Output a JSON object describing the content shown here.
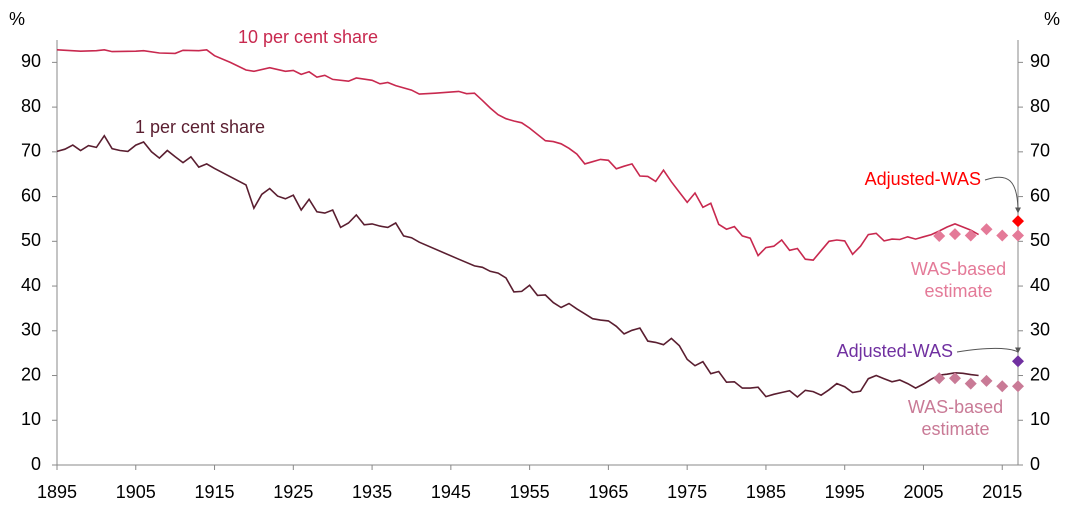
{
  "chart_data": {
    "type": "line",
    "y_label": "%",
    "y2_label": "%",
    "xlim": [
      1895,
      2017
    ],
    "xticks": [
      1895,
      1905,
      1915,
      1925,
      1935,
      1945,
      1955,
      1965,
      1975,
      1985,
      1995,
      2005,
      2015
    ],
    "ylim": [
      0,
      95
    ],
    "yticks": [
      0,
      10,
      20,
      30,
      40,
      50,
      60,
      70,
      80,
      90
    ],
    "y2lim": [
      0,
      95
    ],
    "y2ticks": [
      0,
      10,
      20,
      30,
      40,
      50,
      60,
      70,
      80,
      90
    ],
    "series": [
      {
        "name": "10 per cent share",
        "color": "#c8294f",
        "marker": "line",
        "x": [
          1895,
          1898,
          1900,
          1901,
          1902,
          1905,
          1906,
          1908,
          1910,
          1911,
          1913,
          1914,
          1915,
          1917,
          1919,
          1920,
          1922,
          1924,
          1925,
          1926,
          1927,
          1928,
          1929,
          1930,
          1932,
          1933,
          1935,
          1936,
          1937,
          1938,
          1940,
          1941,
          1943,
          1946,
          1947,
          1948,
          1949,
          1950,
          1951,
          1952,
          1953,
          1954,
          1955,
          1957,
          1958,
          1959,
          1960,
          1961,
          1962,
          1963,
          1964,
          1965,
          1966,
          1967,
          1968,
          1969,
          1970,
          1971,
          1972,
          1973,
          1974,
          1975,
          1976,
          1977,
          1978,
          1979,
          1980,
          1981,
          1982,
          1983,
          1984,
          1985,
          1986,
          1987,
          1988,
          1989,
          1990,
          1991,
          1992,
          1993,
          1994,
          1995,
          1996,
          1997,
          1998,
          1999,
          2000,
          2001,
          2002,
          2003,
          2004,
          2005,
          2006,
          2007,
          2008,
          2009,
          2010,
          2011,
          2012
        ],
        "values": [
          92.8,
          92.5,
          92.6,
          92.8,
          92.4,
          92.5,
          92.6,
          92.1,
          92.0,
          92.7,
          92.6,
          92.8,
          91.5,
          90,
          88.3,
          88,
          88.8,
          88,
          88.2,
          87.3,
          87.9,
          86.7,
          87.1,
          86.2,
          85.8,
          86.5,
          86,
          85.2,
          85.5,
          84.8,
          83.8,
          82.9,
          83.1,
          83.5,
          83.0,
          83.1,
          81.5,
          79.8,
          78.3,
          77.4,
          76.9,
          76.5,
          75.3,
          72.5,
          72.3,
          71.8,
          70.8,
          69.5,
          67.3,
          67.8,
          68.3,
          68.1,
          66.2,
          66.8,
          67.3,
          64.6,
          64.5,
          63.4,
          65.9,
          63.3,
          61,
          58.7,
          60.8,
          57.6,
          58.5,
          53.8,
          52.7,
          53.3,
          51.2,
          50.7,
          46.8,
          48.6,
          48.9,
          50.3,
          48,
          48.4,
          46,
          45.8,
          47.9,
          50,
          50.3,
          50.1,
          47.1,
          48.9,
          51.5,
          51.8,
          50.1,
          50.5,
          50.4,
          51,
          50.5,
          51,
          51.5,
          52.3,
          53.2,
          53.9,
          53.2,
          52.5,
          51.5
        ]
      },
      {
        "name": "1 per cent share",
        "color": "#5a1e30",
        "marker": "line",
        "x": [
          1895,
          1896,
          1897,
          1898,
          1899,
          1900,
          1901,
          1902,
          1903,
          1904,
          1905,
          1906,
          1907,
          1908,
          1909,
          1910,
          1911,
          1912,
          1913,
          1914,
          1915,
          1919,
          1920,
          1921,
          1922,
          1923,
          1924,
          1925,
          1926,
          1927,
          1928,
          1929,
          1930,
          1931,
          1932,
          1933,
          1934,
          1935,
          1936,
          1937,
          1938,
          1939,
          1940,
          1941,
          1946,
          1948,
          1949,
          1950,
          1951,
          1952,
          1953,
          1954,
          1955,
          1956,
          1957,
          1958,
          1959,
          1960,
          1961,
          1962,
          1963,
          1964,
          1965,
          1966,
          1967,
          1968,
          1969,
          1970,
          1971,
          1972,
          1973,
          1974,
          1975,
          1976,
          1977,
          1978,
          1979,
          1980,
          1981,
          1982,
          1983,
          1984,
          1985,
          1986,
          1987,
          1988,
          1989,
          1990,
          1991,
          1992,
          1993,
          1994,
          1995,
          1996,
          1997,
          1998,
          1999,
          2000,
          2001,
          2002,
          2003,
          2004,
          2005,
          2006,
          2007,
          2008,
          2009,
          2010,
          2011,
          2012
        ],
        "values": [
          70.1,
          70.6,
          71.5,
          70.3,
          71.4,
          71,
          73.6,
          70.7,
          70.3,
          70.1,
          71.5,
          72.2,
          70,
          68.6,
          70.3,
          68.9,
          67.6,
          68.9,
          66.6,
          67.3,
          66.3,
          62.6,
          57.4,
          60.5,
          61.8,
          60.1,
          59.5,
          60.3,
          57,
          59.4,
          56.6,
          56.3,
          57,
          53.1,
          54.1,
          55.9,
          53.7,
          53.9,
          53.4,
          53.1,
          54.1,
          51.2,
          50.8,
          49.8,
          46,
          44.5,
          44.2,
          43.3,
          42.9,
          41.8,
          38.7,
          38.8,
          40.2,
          37.9,
          38,
          36.3,
          35.2,
          36.1,
          34.9,
          33.8,
          32.7,
          32.4,
          32.2,
          31,
          29.3,
          30.1,
          30.6,
          27.7,
          27.4,
          26.9,
          28.3,
          26.7,
          23.6,
          22.2,
          23.1,
          20.4,
          20.9,
          18.5,
          18.6,
          17.2,
          17.2,
          17.4,
          15.3,
          15.8,
          16.2,
          16.6,
          15.2,
          16.7,
          16.4,
          15.6,
          16.8,
          18.2,
          17.5,
          16.2,
          16.5,
          19.3,
          20,
          19.3,
          18.6,
          19,
          18.2,
          17.2,
          18.1,
          19.2,
          20.1,
          20.3,
          20.6,
          20.5,
          20.2,
          20
        ]
      },
      {
        "name": "WAS-based estimate",
        "color": "#e47a98",
        "marker": "diamond",
        "x": [
          2007,
          2009,
          2011,
          2013,
          2015,
          2017
        ],
        "values": [
          51.2,
          51.6,
          51.3,
          52.7,
          51.3,
          51.3
        ]
      },
      {
        "name": "WAS-based estimate",
        "color": "#c97a96",
        "marker": "diamond",
        "x": [
          2007,
          2009,
          2011,
          2013,
          2015,
          2017
        ],
        "values": [
          19.4,
          19.4,
          18.2,
          18.8,
          17.6,
          17.6
        ]
      },
      {
        "name": "Adjusted-WAS",
        "color": "#ff0000",
        "marker": "diamond",
        "x": [
          2017
        ],
        "values": [
          54.5
        ]
      },
      {
        "name": "Adjusted-WAS",
        "color": "#7030a0",
        "marker": "diamond",
        "x": [
          2017
        ],
        "values": [
          23.2
        ]
      }
    ]
  }
}
